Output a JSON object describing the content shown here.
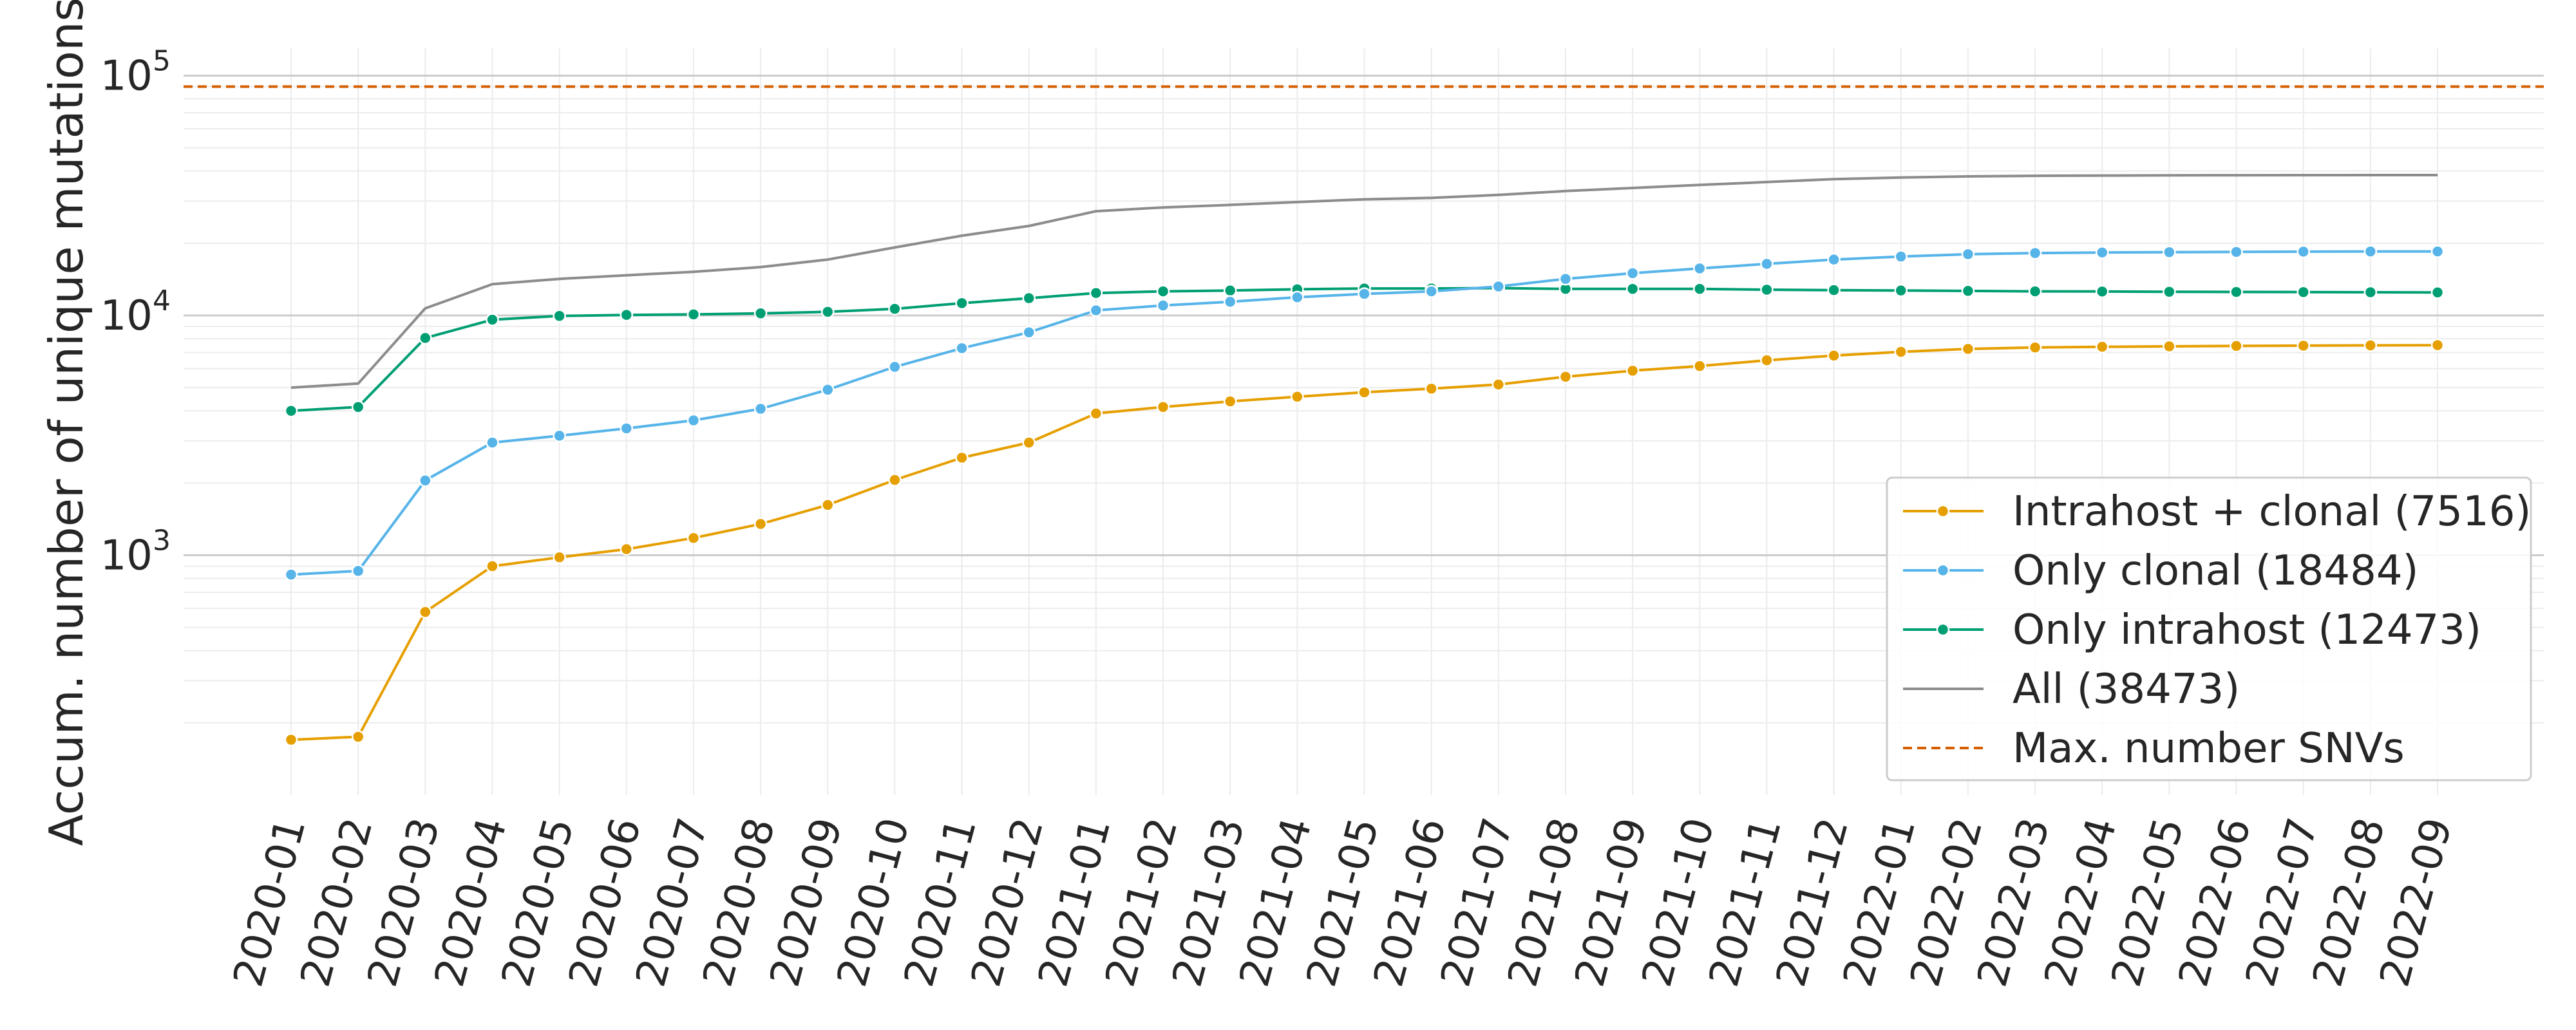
{
  "chart_data": {
    "type": "line",
    "ylabel": "Accum. number of unique mutations",
    "xlabel": "",
    "yscale": "log",
    "ylim": [
      100,
      130000
    ],
    "yticks": [
      {
        "value": 1000,
        "base": "10",
        "exp": "3"
      },
      {
        "value": 10000,
        "base": "10",
        "exp": "4"
      },
      {
        "value": 100000,
        "base": "10",
        "exp": "5"
      }
    ],
    "grid": true,
    "legend_position": "lower-right",
    "x": [
      "2020-01",
      "2020-02",
      "2020-03",
      "2020-04",
      "2020-05",
      "2020-06",
      "2020-07",
      "2020-08",
      "2020-09",
      "2020-10",
      "2020-11",
      "2020-12",
      "2021-01",
      "2021-02",
      "2021-03",
      "2021-04",
      "2021-05",
      "2021-06",
      "2021-07",
      "2021-08",
      "2021-09",
      "2021-10",
      "2021-11",
      "2021-12",
      "2022-01",
      "2022-02",
      "2022-03",
      "2022-04",
      "2022-05",
      "2022-06",
      "2022-07",
      "2022-08",
      "2022-09"
    ],
    "series": [
      {
        "name": "Intrahost + clonal (7516)",
        "color": "#E69F00",
        "markers": true,
        "values": [
          170,
          175,
          580,
          900,
          980,
          1060,
          1180,
          1350,
          1620,
          2060,
          2550,
          2950,
          3900,
          4150,
          4380,
          4580,
          4780,
          4950,
          5150,
          5550,
          5880,
          6150,
          6500,
          6800,
          7050,
          7250,
          7350,
          7400,
          7430,
          7460,
          7480,
          7500,
          7516
        ]
      },
      {
        "name": "Only clonal (18484)",
        "color": "#56B4E9",
        "markers": true,
        "values": [
          830,
          860,
          2050,
          2950,
          3150,
          3380,
          3650,
          4080,
          4900,
          6100,
          7300,
          8500,
          10500,
          11000,
          11400,
          11900,
          12300,
          12600,
          13200,
          14200,
          15000,
          15700,
          16400,
          17100,
          17600,
          18000,
          18200,
          18300,
          18350,
          18400,
          18450,
          18480,
          18484
        ]
      },
      {
        "name": "Only intrahost (12473)",
        "color": "#009E73",
        "markers": true,
        "values": [
          4000,
          4150,
          8050,
          9600,
          9950,
          10050,
          10100,
          10200,
          10350,
          10650,
          11250,
          11800,
          12400,
          12600,
          12700,
          12850,
          12950,
          12950,
          13000,
          12900,
          12900,
          12900,
          12800,
          12750,
          12700,
          12650,
          12600,
          12580,
          12550,
          12530,
          12510,
          12490,
          12473
        ]
      },
      {
        "name": "All (38473)",
        "color": "#8c8c8c",
        "markers": false,
        "values": [
          5000,
          5200,
          10700,
          13500,
          14200,
          14700,
          15200,
          15900,
          17100,
          19200,
          21500,
          23600,
          27200,
          28200,
          28900,
          29700,
          30500,
          30900,
          31800,
          33000,
          34000,
          35000,
          36000,
          37000,
          37600,
          38000,
          38200,
          38300,
          38380,
          38420,
          38450,
          38470,
          38473
        ]
      }
    ],
    "reference_line": {
      "name": "Max. number SNVs",
      "value": 90000,
      "color": "#D55E00",
      "dashed": true
    }
  }
}
